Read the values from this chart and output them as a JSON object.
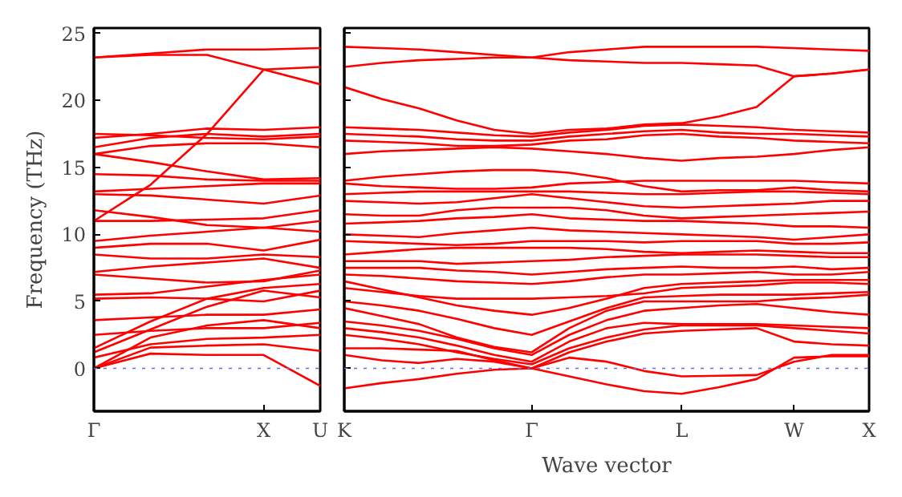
{
  "chart_data": [
    {
      "type": "line",
      "ylabel": "Frequency (THz)",
      "categories": [
        "Γ",
        null,
        null,
        "X",
        "U"
      ],
      "ylim": [
        -3.2,
        25.4
      ],
      "yticks": [
        0,
        5,
        10,
        15,
        20,
        25
      ],
      "line_style": "solid",
      "marker": "none",
      "ref_lines": [
        {
          "axis": "y",
          "value": 0,
          "color": "#6070e0",
          "line_style": "dotted"
        }
      ],
      "series": [
        {
          "color": "#ff0000",
          "values": [
            0,
            1.1,
            1.0,
            1.0,
            -1.3
          ]
        },
        {
          "color": "#ff0000",
          "values": [
            0,
            1.55,
            1.7,
            1.8,
            1.3
          ]
        },
        {
          "color": "#ff0000",
          "values": [
            0,
            2.3,
            3.2,
            3.6,
            3.0
          ]
        },
        {
          "color": "#ff0000",
          "values": [
            0.8,
            1.8,
            2.2,
            2.3,
            2.5
          ]
        },
        {
          "color": "#ff0000",
          "values": [
            1.2,
            2.9,
            4.6,
            5.8,
            5.3
          ]
        },
        {
          "color": "#ff0000",
          "values": [
            1.5,
            3.5,
            5.2,
            6.0,
            6.3
          ]
        },
        {
          "color": "#ff0000",
          "values": [
            2.5,
            2.8,
            3.0,
            3.0,
            3.4
          ]
        },
        {
          "color": "#ff0000",
          "values": [
            3.6,
            3.8,
            4.0,
            4.0,
            4.4
          ]
        },
        {
          "color": "#ff0000",
          "values": [
            5.2,
            5.3,
            5.2,
            5.0,
            5.8
          ]
        },
        {
          "color": "#ff0000",
          "values": [
            5.5,
            5.6,
            6.1,
            6.6,
            7.0
          ]
        },
        {
          "color": "#ff0000",
          "values": [
            7.0,
            6.7,
            6.4,
            6.5,
            7.3
          ]
        },
        {
          "color": "#ff0000",
          "values": [
            7.2,
            7.6,
            7.9,
            8.2,
            7.5
          ]
        },
        {
          "color": "#ff0000",
          "values": [
            8.5,
            8.2,
            8.2,
            8.5,
            8.3
          ]
        },
        {
          "color": "#ff0000",
          "values": [
            9.0,
            9.3,
            9.3,
            8.8,
            9.6
          ]
        },
        {
          "color": "#ff0000",
          "values": [
            9.5,
            9.9,
            10.2,
            10.5,
            10.2
          ]
        },
        {
          "color": "#ff0000",
          "values": [
            11.0,
            11.0,
            11.1,
            11.2,
            11.8
          ]
        },
        {
          "color": "#ff0000",
          "values": [
            11.8,
            11.3,
            10.7,
            10.5,
            11.0
          ]
        },
        {
          "color": "#ff0000",
          "values": [
            13.0,
            12.9,
            12.6,
            12.3,
            12.9
          ]
        },
        {
          "color": "#ff0000",
          "values": [
            13.2,
            13.4,
            13.6,
            13.8,
            13.8
          ]
        },
        {
          "color": "#ff0000",
          "values": [
            14.5,
            14.4,
            14.1,
            14.0,
            14.0
          ]
        },
        {
          "color": "#ff0000",
          "values": [
            16.0,
            15.4,
            14.7,
            14.1,
            14.2
          ]
        },
        {
          "color": "#ff0000",
          "values": [
            16.0,
            16.6,
            16.8,
            16.8,
            16.5
          ]
        },
        {
          "color": "#ff0000",
          "values": [
            16.5,
            17.2,
            17.5,
            17.3,
            17.5
          ]
        },
        {
          "color": "#ff0000",
          "values": [
            17.2,
            17.5,
            17.9,
            17.8,
            18.0
          ]
        },
        {
          "color": "#ff0000",
          "values": [
            17.5,
            17.4,
            17.2,
            17.1,
            17.3
          ]
        },
        {
          "color": "#ff0000",
          "values": [
            11.0,
            13.7,
            17.5,
            22.3,
            22.5
          ]
        },
        {
          "color": "#ff0000",
          "values": [
            23.2,
            23.5,
            23.8,
            23.8,
            23.9
          ]
        },
        {
          "color": "#ff0000",
          "values": [
            23.2,
            23.4,
            23.4,
            22.3,
            21.2
          ]
        }
      ]
    },
    {
      "type": "line",
      "xlabel": "Wave vector",
      "categories": [
        "K",
        null,
        null,
        null,
        null,
        "Γ",
        null,
        null,
        null,
        "L",
        null,
        null,
        "W",
        null,
        "X"
      ],
      "ylim": [
        -3.2,
        25.4
      ],
      "yticks": [
        0,
        5,
        10,
        15,
        20,
        25
      ],
      "tick_labels": "x",
      "line_style": "solid",
      "marker": "none",
      "ref_lines": [
        {
          "axis": "y",
          "value": 0,
          "color": "#6070e0",
          "line_style": "dotted"
        }
      ],
      "series": [
        {
          "color": "#ff0000",
          "values": [
            -1.5,
            -1.1,
            -0.8,
            -0.4,
            -0.1,
            0,
            -0.6,
            -1.2,
            -1.7,
            -1.9,
            -1.4,
            -0.8,
            0.8,
            0.9,
            0.9
          ]
        },
        {
          "color": "#ff0000",
          "values": [
            1.0,
            0.6,
            0.4,
            0.7,
            0.5,
            0,
            0.8,
            0.5,
            -0.2,
            -0.6,
            -0.55,
            -0.5,
            0.5,
            1.0,
            1.0
          ]
        },
        {
          "color": "#ff0000",
          "values": [
            1.5,
            1.5,
            1.4,
            1.3,
            0.6,
            0,
            1.2,
            2.0,
            2.6,
            2.8,
            2.9,
            3.0,
            2.0,
            1.8,
            1.7
          ]
        },
        {
          "color": "#ff0000",
          "values": [
            2.5,
            2.2,
            1.8,
            1.2,
            0.7,
            0.3,
            1.5,
            2.3,
            2.9,
            3.2,
            3.2,
            3.2,
            3.0,
            2.8,
            2.6
          ]
        },
        {
          "color": "#ff0000",
          "values": [
            3.0,
            2.7,
            2.3,
            1.7,
            1.0,
            0.5,
            2.0,
            3.0,
            3.4,
            3.3,
            3.3,
            3.3,
            3.2,
            3.1,
            3.0
          ]
        },
        {
          "color": "#ff0000",
          "values": [
            3.5,
            3.2,
            2.8,
            2.2,
            1.5,
            1.0,
            2.5,
            3.6,
            4.3,
            4.5,
            4.7,
            4.8,
            4.5,
            4.2,
            4.0
          ]
        },
        {
          "color": "#ff0000",
          "values": [
            4.5,
            3.9,
            3.3,
            2.3,
            1.6,
            1.2,
            3.0,
            4.3,
            5.0,
            5.0,
            5.0,
            5.0,
            5.2,
            5.3,
            5.5
          ]
        },
        {
          "color": "#ff0000",
          "values": [
            5.0,
            4.7,
            4.3,
            3.7,
            3.0,
            2.5,
            3.5,
            4.5,
            5.3,
            5.4,
            5.5,
            5.5,
            5.5,
            5.6,
            5.7
          ]
        },
        {
          "color": "#ff0000",
          "values": [
            6.0,
            5.7,
            5.4,
            5.2,
            5.2,
            5.2,
            5.3,
            5.4,
            5.6,
            6.0,
            6.1,
            6.2,
            6.4,
            6.4,
            6.3
          ]
        },
        {
          "color": "#ff0000",
          "values": [
            6.5,
            5.9,
            5.3,
            4.7,
            4.3,
            4.0,
            4.5,
            5.2,
            6.0,
            6.3,
            6.4,
            6.5,
            6.6,
            6.6,
            6.6
          ]
        },
        {
          "color": "#ff0000",
          "values": [
            7.0,
            6.9,
            6.7,
            6.5,
            6.4,
            6.3,
            6.5,
            6.8,
            7.0,
            7.0,
            7.1,
            7.2,
            7.0,
            7.0,
            7.2
          ]
        },
        {
          "color": "#ff0000",
          "values": [
            7.5,
            7.5,
            7.5,
            7.3,
            7.2,
            7.0,
            7.2,
            7.4,
            7.5,
            7.6,
            7.5,
            7.5,
            7.6,
            7.4,
            7.5
          ]
        },
        {
          "color": "#ff0000",
          "values": [
            8.0,
            8.0,
            8.0,
            7.8,
            7.9,
            8.0,
            8.1,
            8.3,
            8.4,
            8.5,
            8.5,
            8.5,
            8.4,
            8.3,
            8.3
          ]
        },
        {
          "color": "#ff0000",
          "values": [
            8.5,
            8.7,
            8.9,
            9.0,
            9.0,
            9.0,
            9.0,
            8.9,
            8.7,
            8.6,
            8.7,
            8.8,
            8.7,
            8.6,
            8.6
          ]
        },
        {
          "color": "#ff0000",
          "values": [
            9.5,
            9.4,
            9.3,
            9.2,
            9.3,
            9.5,
            9.5,
            9.5,
            9.4,
            9.5,
            9.5,
            9.5,
            9.3,
            9.3,
            9.4
          ]
        },
        {
          "color": "#ff0000",
          "values": [
            10.0,
            9.9,
            9.8,
            10.1,
            10.3,
            10.5,
            10.3,
            10.2,
            10.1,
            10.0,
            9.9,
            9.8,
            9.6,
            9.8,
            10.0
          ]
        },
        {
          "color": "#ff0000",
          "values": [
            10.8,
            10.9,
            11.0,
            11.2,
            11.3,
            11.5,
            11.2,
            11.1,
            11.0,
            11.0,
            10.9,
            10.8,
            10.6,
            10.6,
            10.5
          ]
        },
        {
          "color": "#ff0000",
          "values": [
            11.5,
            11.4,
            11.4,
            11.8,
            12.0,
            12.0,
            12.0,
            11.8,
            11.4,
            11.2,
            11.3,
            11.4,
            11.5,
            11.6,
            11.7
          ]
        },
        {
          "color": "#ff0000",
          "values": [
            12.5,
            12.4,
            12.3,
            12.4,
            12.7,
            13.0,
            12.7,
            12.4,
            12.1,
            12.0,
            12.1,
            12.2,
            12.3,
            12.5,
            12.5
          ]
        },
        {
          "color": "#ff0000",
          "values": [
            13.0,
            13.1,
            13.2,
            13.2,
            13.2,
            13.2,
            13.2,
            13.1,
            13.0,
            13.0,
            13.1,
            13.2,
            13.2,
            13.1,
            13.0
          ]
        },
        {
          "color": "#ff0000",
          "values": [
            13.8,
            13.6,
            13.5,
            13.4,
            13.4,
            13.5,
            13.8,
            13.9,
            14.0,
            14.0,
            14.0,
            14.0,
            14.0,
            13.9,
            13.8
          ]
        },
        {
          "color": "#ff0000",
          "values": [
            14.0,
            14.3,
            14.5,
            14.7,
            14.8,
            14.8,
            14.6,
            14.2,
            13.6,
            13.2,
            13.3,
            13.3,
            13.5,
            13.3,
            13.2
          ]
        },
        {
          "color": "#ff0000",
          "values": [
            16.0,
            16.2,
            16.3,
            16.4,
            16.5,
            16.4,
            16.2,
            16.0,
            15.7,
            15.5,
            15.7,
            15.8,
            16.0,
            16.3,
            16.5
          ]
        },
        {
          "color": "#ff0000",
          "values": [
            17.0,
            16.9,
            16.8,
            16.6,
            16.6,
            16.7,
            17.0,
            17.1,
            17.4,
            17.5,
            17.3,
            17.2,
            17.0,
            16.9,
            16.8
          ]
        },
        {
          "color": "#ff0000",
          "values": [
            17.5,
            17.4,
            17.3,
            17.1,
            17.0,
            17.0,
            17.3,
            17.5,
            17.7,
            17.8,
            17.6,
            17.5,
            17.5,
            17.4,
            17.3
          ]
        },
        {
          "color": "#ff0000",
          "values": [
            18.0,
            17.9,
            17.8,
            17.6,
            17.4,
            17.3,
            17.6,
            17.8,
            18.1,
            18.2,
            18.1,
            18.0,
            17.8,
            17.7,
            17.6
          ]
        },
        {
          "color": "#ff0000",
          "values": [
            21.0,
            20.1,
            19.4,
            18.5,
            17.8,
            17.5,
            17.8,
            17.9,
            18.2,
            18.3,
            18.8,
            19.5,
            21.8,
            22.0,
            22.3
          ]
        },
        {
          "color": "#ff0000",
          "values": [
            22.5,
            22.8,
            23.0,
            23.1,
            23.2,
            23.2,
            23.0,
            22.9,
            22.8,
            22.8,
            22.7,
            22.6,
            21.8,
            22.0,
            22.3
          ]
        },
        {
          "color": "#ff0000",
          "values": [
            24.0,
            23.9,
            23.8,
            23.6,
            23.4,
            23.2,
            23.6,
            23.8,
            24.0,
            24.0,
            24.0,
            24.0,
            23.9,
            23.8,
            23.7
          ]
        }
      ]
    }
  ]
}
